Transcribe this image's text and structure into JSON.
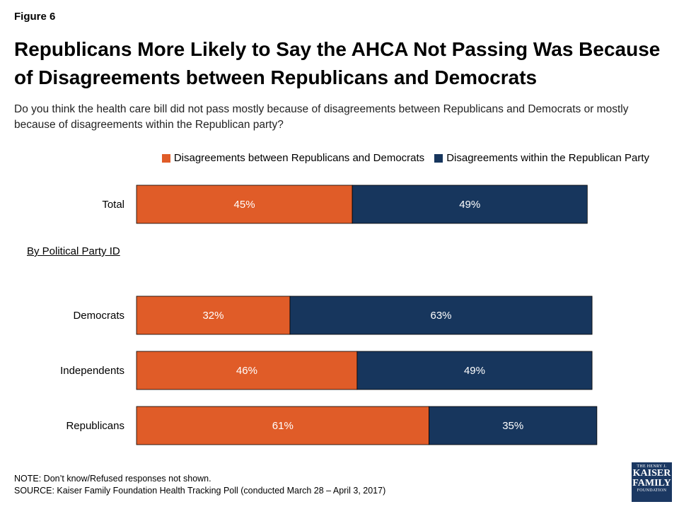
{
  "figure_label": "Figure 6",
  "title": "Republicans More Likely to Say the AHCA Not Passing Was Because of Disagreements between Republicans and Democrats",
  "subtitle": "Do you think the health care bill did not pass mostly because of disagreements between Republicans and Democrats or mostly because of disagreements within the Republican party?",
  "section_label": "By Political Party ID",
  "note": "NOTE: Don’t know/Refused responses not shown.",
  "source": "SOURCE: Kaiser Family Foundation Health Tracking Poll (conducted March 28 – April 3, 2017)",
  "logo": {
    "line1": "THE HENRY J.",
    "line2": "KAISER",
    "line3": "FAMILY",
    "line4": "FOUNDATION"
  },
  "colors": {
    "between": "#e05c28",
    "within": "#17365d"
  },
  "chart_data": {
    "type": "bar",
    "orientation": "horizontal",
    "stacked": true,
    "categories": [
      "Total",
      "Democrats",
      "Independents",
      "Republicans"
    ],
    "series": [
      {
        "name": "Disagreements between Republicans and Democrats",
        "values": [
          45,
          32,
          46,
          61
        ],
        "labels": [
          "45%",
          "32%",
          "46%",
          "61%"
        ]
      },
      {
        "name": "Disagreements within the Republican Party",
        "values": [
          49,
          63,
          49,
          35
        ],
        "labels": [
          "49%",
          "63%",
          "49%",
          "35%"
        ]
      }
    ],
    "xlim": [
      0,
      100
    ],
    "legend": "top-right",
    "grid": false
  }
}
